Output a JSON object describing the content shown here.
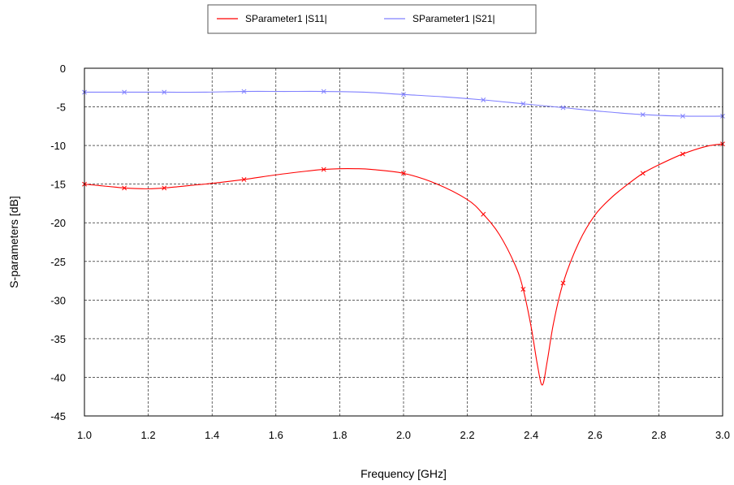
{
  "chart_data": {
    "type": "line",
    "title": "",
    "xlabel": "Frequency [GHz]",
    "ylabel": "S-parameters [dB]",
    "xlim": [
      1.0,
      3.0
    ],
    "ylim": [
      -45,
      0
    ],
    "xticks": [
      "1.0",
      "1.2",
      "1.4",
      "1.6",
      "1.8",
      "2.0",
      "2.2",
      "2.4",
      "2.6",
      "2.8",
      "3.0"
    ],
    "yticks": [
      "0",
      "-5",
      "-10",
      "-15",
      "-20",
      "-25",
      "-30",
      "-35",
      "-40",
      "-45"
    ],
    "grid": true,
    "legend_position": "top-center",
    "series": [
      {
        "name": "SParameter1 |S11|",
        "color": "#ff0000",
        "x": [
          1.0,
          1.05,
          1.1,
          1.125,
          1.15,
          1.2,
          1.25,
          1.3,
          1.35,
          1.4,
          1.5,
          1.6,
          1.7,
          1.75,
          1.8,
          1.85,
          1.9,
          2.0,
          2.1,
          2.2,
          2.25,
          2.3,
          2.35,
          2.375,
          2.4,
          2.42,
          2.435,
          2.45,
          2.47,
          2.5,
          2.55,
          2.6,
          2.65,
          2.7,
          2.75,
          2.8,
          2.875,
          2.95,
          3.0
        ],
        "values": [
          -15.0,
          -15.2,
          -15.4,
          -15.5,
          -15.55,
          -15.6,
          -15.5,
          -15.3,
          -15.1,
          -14.9,
          -14.4,
          -13.8,
          -13.3,
          -13.1,
          -13.0,
          -13.0,
          -13.1,
          -13.6,
          -14.9,
          -17.0,
          -18.9,
          -21.5,
          -25.5,
          -28.6,
          -33.5,
          -38.5,
          -41.0,
          -38.0,
          -33.0,
          -27.8,
          -22.5,
          -19.0,
          -16.8,
          -15.1,
          -13.6,
          -12.5,
          -11.1,
          -10.1,
          -9.8
        ],
        "marker_x": [
          1.0,
          1.125,
          1.25,
          1.5,
          1.75,
          2.0,
          2.25,
          2.375,
          2.5,
          2.75,
          2.875,
          3.0
        ]
      },
      {
        "name": "SParameter1 |S21|",
        "color": "#8080ff",
        "x": [
          1.0,
          1.125,
          1.25,
          1.375,
          1.5,
          1.625,
          1.75,
          1.875,
          2.0,
          2.125,
          2.25,
          2.375,
          2.5,
          2.625,
          2.75,
          2.875,
          3.0
        ],
        "values": [
          -3.1,
          -3.1,
          -3.1,
          -3.1,
          -3.0,
          -3.0,
          -3.0,
          -3.1,
          -3.4,
          -3.7,
          -4.1,
          -4.6,
          -5.1,
          -5.6,
          -6.0,
          -6.2,
          -6.2
        ],
        "marker_x": [
          1.0,
          1.125,
          1.25,
          1.5,
          1.75,
          2.0,
          2.25,
          2.375,
          2.5,
          2.75,
          2.875,
          3.0
        ]
      }
    ]
  }
}
